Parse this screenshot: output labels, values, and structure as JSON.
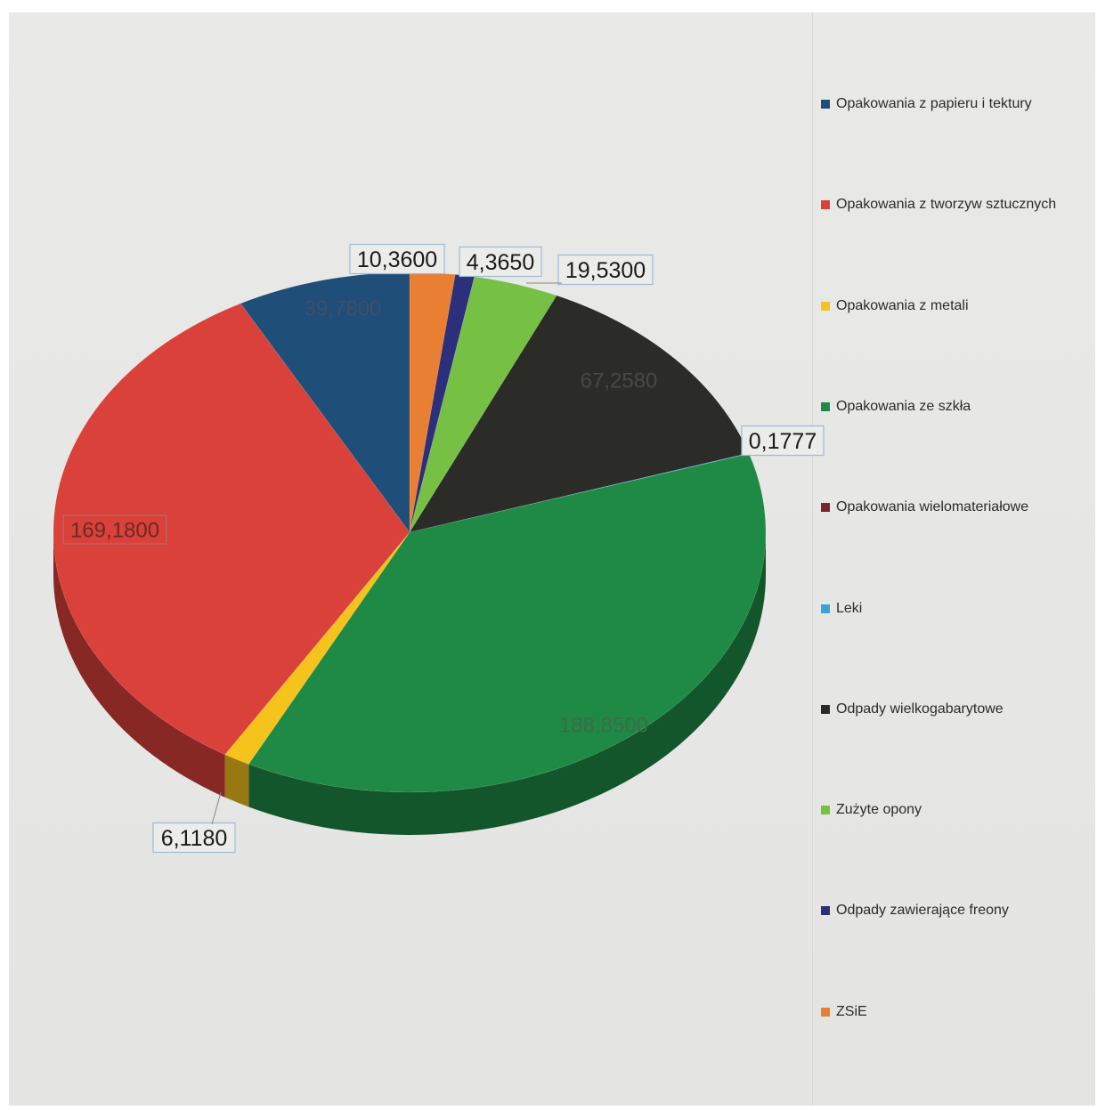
{
  "chart_data": {
    "type": "pie",
    "legend_placement": "right",
    "series": [
      {
        "name": "Opakowania z papieru i tektury",
        "value": 39.78,
        "label": "39,7800",
        "color": "#1f4e79"
      },
      {
        "name": "Opakowania z tworzyw sztucznych",
        "value": 169.18,
        "label": "169,1800",
        "color": "#d9413a"
      },
      {
        "name": "Opakowania z metali",
        "value": 6.118,
        "label": "6,1180",
        "color": "#f5c31c"
      },
      {
        "name": "Opakowania ze szkła",
        "value": 188.85,
        "label": "188,8500",
        "color": "#1f8a45"
      },
      {
        "name": "Opakowania wielomateriałowe",
        "value": 0,
        "label": "",
        "color": "#7a2430"
      },
      {
        "name": "Leki",
        "value": 0.1777,
        "label": "0,1777",
        "color": "#3aa3dc"
      },
      {
        "name": "Odpady wielkogabarytowe",
        "value": 67.258,
        "label": "67,2580",
        "color": "#2b2b28"
      },
      {
        "name": "Zużyte opony",
        "value": 19.53,
        "label": "19,5300",
        "color": "#76c043"
      },
      {
        "name": "Odpady zawierające freony",
        "value": 4.365,
        "label": "4,3650",
        "color": "#2c2f7a"
      },
      {
        "name": "ZSiE",
        "value": 10.36,
        "label": "10,3600",
        "color": "#e97f33"
      }
    ]
  }
}
